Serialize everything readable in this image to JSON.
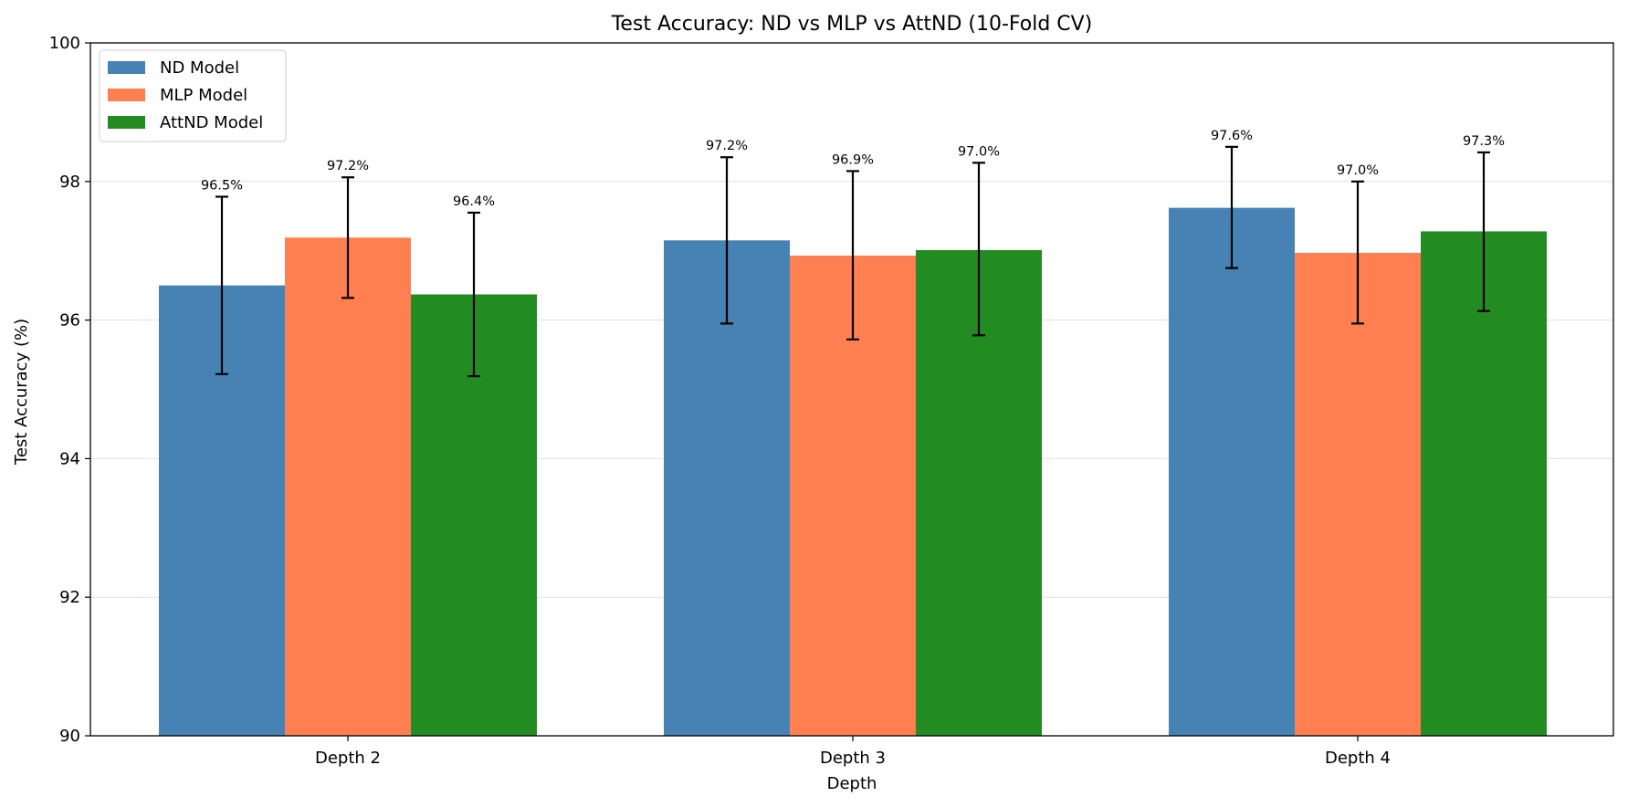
{
  "chart_data": {
    "type": "bar",
    "title": "Test Accuracy: ND vs MLP vs AttND (10-Fold CV)",
    "xlabel": "Depth",
    "ylabel": "Test Accuracy (%)",
    "categories": [
      "Depth 2",
      "Depth 3",
      "Depth 4"
    ],
    "ylim": [
      90,
      100
    ],
    "yticks": [
      90,
      92,
      94,
      96,
      98,
      100
    ],
    "grid": "y",
    "legend_position": "top-left",
    "series": [
      {
        "name": "ND Model",
        "color": "#4682b4",
        "values": [
          96.5,
          97.15,
          97.62
        ],
        "err_low": [
          95.22,
          95.95,
          96.75
        ],
        "err_high": [
          97.78,
          98.35,
          98.5
        ],
        "labels": [
          "96.5%",
          "97.2%",
          "97.6%"
        ]
      },
      {
        "name": "MLP Model",
        "color": "#ff7f50",
        "values": [
          97.19,
          96.93,
          96.97
        ],
        "err_low": [
          96.32,
          95.72,
          95.95
        ],
        "err_high": [
          98.06,
          98.15,
          98.0
        ],
        "labels": [
          "97.2%",
          "96.9%",
          "97.0%"
        ]
      },
      {
        "name": "AttND Model",
        "color": "#228b22",
        "values": [
          96.37,
          97.01,
          97.28
        ],
        "err_low": [
          95.19,
          95.78,
          96.13
        ],
        "err_high": [
          97.55,
          98.27,
          98.42
        ],
        "labels": [
          "96.4%",
          "97.0%",
          "97.3%"
        ]
      }
    ]
  }
}
